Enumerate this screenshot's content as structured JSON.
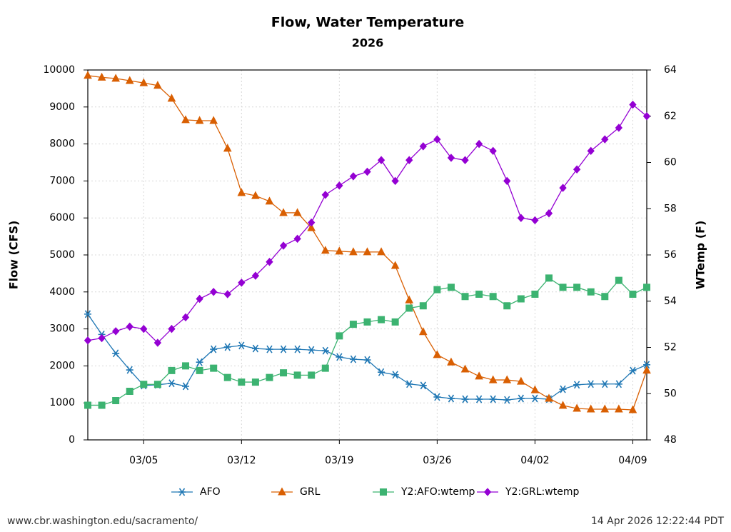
{
  "chart_data": {
    "type": "line",
    "title": "Flow, Water Temperature",
    "subtitle": "2026",
    "y_label": "Flow (CFS)",
    "y2_label": "WTemp (F)",
    "source": "www.cbr.washington.edu/sacramento/",
    "timestamp": "14 Apr 2026 12:22:44 PDT",
    "grid": true,
    "x": [
      "03/01",
      "03/02",
      "03/03",
      "03/04",
      "03/05",
      "03/06",
      "03/07",
      "03/08",
      "03/09",
      "03/10",
      "03/11",
      "03/12",
      "03/13",
      "03/14",
      "03/15",
      "03/16",
      "03/17",
      "03/18",
      "03/19",
      "03/20",
      "03/21",
      "03/22",
      "03/23",
      "03/24",
      "03/25",
      "03/26",
      "03/27",
      "03/28",
      "03/29",
      "03/30",
      "03/31",
      "04/01",
      "04/02",
      "04/03",
      "04/04",
      "04/05",
      "04/06",
      "04/07",
      "04/08",
      "04/09",
      "04/10"
    ],
    "xticks": [
      "03/05",
      "03/12",
      "03/19",
      "03/26",
      "04/02",
      "04/09"
    ],
    "ylim": [
      0,
      10000
    ],
    "yticks": [
      0,
      1000,
      2000,
      3000,
      4000,
      5000,
      6000,
      7000,
      8000,
      9000,
      10000
    ],
    "y2lim": [
      48,
      64
    ],
    "y2ticks": [
      48,
      50,
      52,
      54,
      56,
      58,
      60,
      62,
      64
    ],
    "series": [
      {
        "name": "AFO",
        "color": "#1f77b4",
        "marker": "star",
        "values": [
          3400,
          2850,
          2340,
          1890,
          1470,
          1490,
          1530,
          1450,
          2100,
          2450,
          2510,
          2550,
          2470,
          2450,
          2450,
          2450,
          2430,
          2410,
          2240,
          2180,
          2160,
          1830,
          1760,
          1510,
          1470,
          1160,
          1120,
          1100,
          1100,
          1100,
          1080,
          1120,
          1120,
          1100,
          1370,
          1490,
          1510,
          1510,
          1510,
          1870,
          2030
        ]
      },
      {
        "name": "GRL",
        "color": "#d95f02",
        "marker": "triangle",
        "values": [
          9850,
          9800,
          9770,
          9710,
          9650,
          9580,
          9230,
          8650,
          8630,
          8630,
          7880,
          6680,
          6600,
          6450,
          6140,
          6140,
          5730,
          5120,
          5100,
          5080,
          5080,
          5080,
          4710,
          3780,
          2920,
          2300,
          2100,
          1910,
          1720,
          1620,
          1620,
          1580,
          1350,
          1120,
          930,
          850,
          830,
          830,
          830,
          810,
          1880
        ]
      },
      {
        "name": "Y2:AFO:wtemp",
        "color": "#3cb371",
        "marker": "square",
        "axis": "y2",
        "values": [
          49.5,
          49.5,
          49.7,
          50.1,
          50.4,
          50.4,
          51.0,
          51.2,
          51.0,
          51.1,
          50.7,
          50.5,
          50.5,
          50.7,
          50.9,
          50.8,
          50.8,
          51.1,
          52.5,
          53.0,
          53.1,
          53.2,
          53.1,
          53.7,
          53.8,
          54.5,
          54.6,
          54.2,
          54.3,
          54.2,
          53.8,
          54.1,
          54.3,
          55.0,
          54.6,
          54.6,
          54.4,
          54.2,
          54.9,
          54.3,
          54.6
        ]
      },
      {
        "name": "Y2:GRL:wtemp",
        "color": "#9400d3",
        "marker": "diamond",
        "axis": "y2",
        "values": [
          52.3,
          52.4,
          52.7,
          52.9,
          52.8,
          52.2,
          52.8,
          53.3,
          54.1,
          54.4,
          54.3,
          54.8,
          55.1,
          55.7,
          56.4,
          56.7,
          57.4,
          58.6,
          59.0,
          59.4,
          59.6,
          60.1,
          59.2,
          60.1,
          60.7,
          61.0,
          60.2,
          60.1,
          60.8,
          60.5,
          59.2,
          57.6,
          57.5,
          57.8,
          58.9,
          59.7,
          60.5,
          61.0,
          61.5,
          62.5,
          62.0
        ]
      }
    ]
  }
}
